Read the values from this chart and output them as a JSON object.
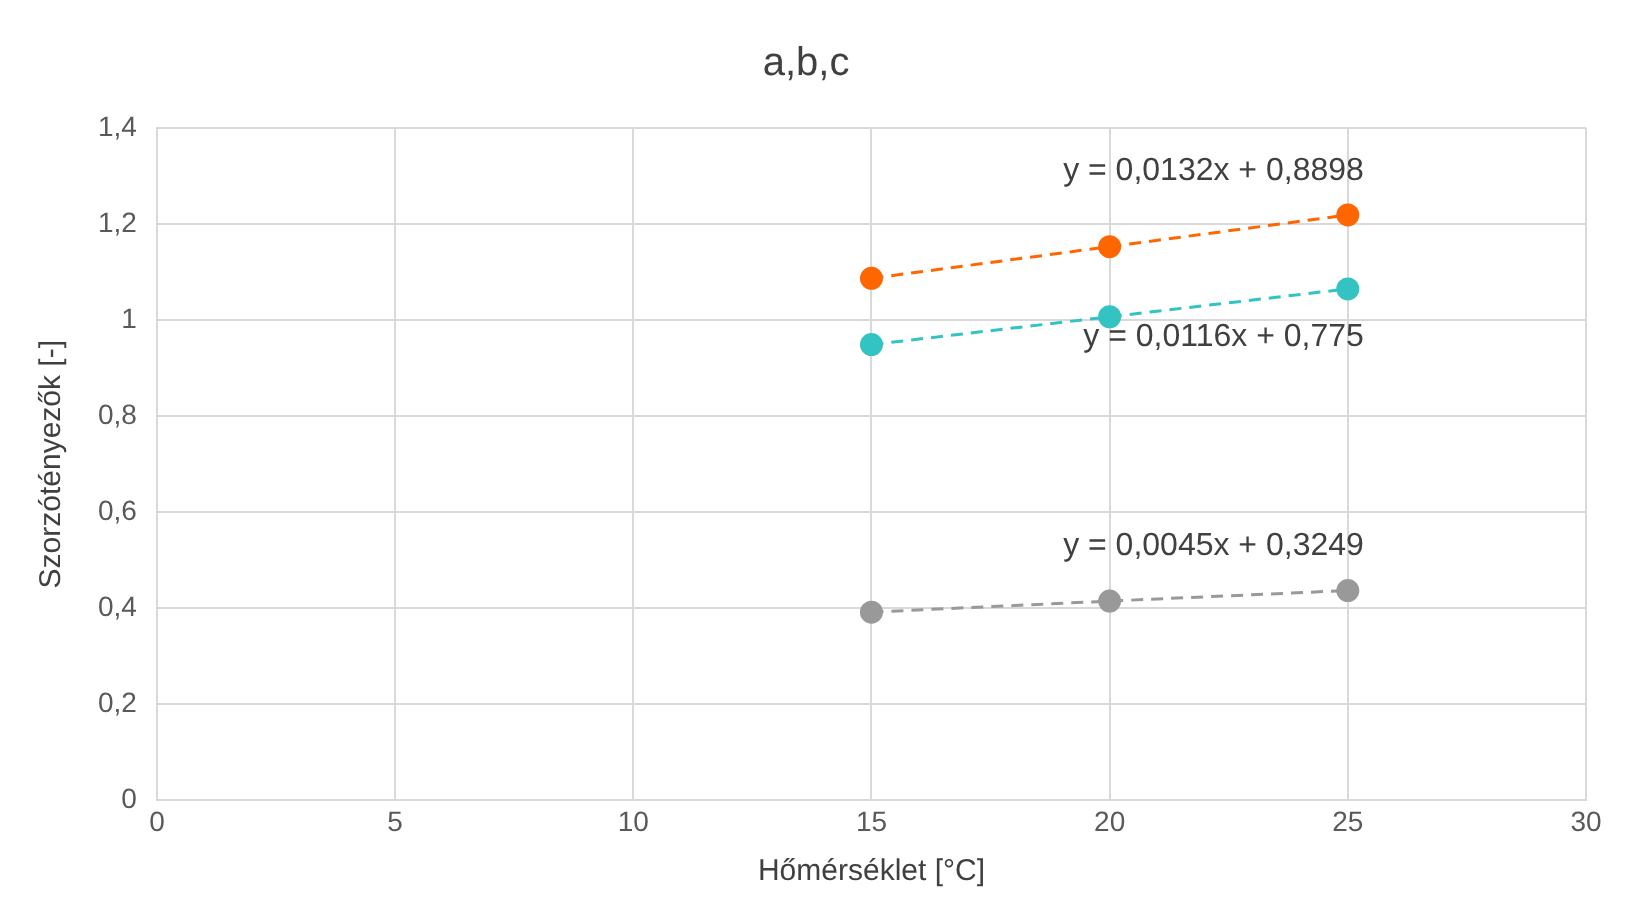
{
  "chart_data": {
    "type": "line",
    "title": "a,b,c",
    "xlabel": "Hőmérséklet [°C]",
    "ylabel": "Szorzótényezők [-]",
    "x": [
      15,
      20,
      25
    ],
    "series": [
      {
        "color": "#ff6600",
        "values": [
          1.087,
          1.153,
          1.219
        ]
      },
      {
        "color": "#33c3c3",
        "values": [
          0.949,
          1.007,
          1.065
        ]
      },
      {
        "color": "#999999",
        "values": [
          0.392,
          0.415,
          0.437
        ]
      }
    ],
    "marker": "circle",
    "line_style": "dashed",
    "grid": true,
    "legend": false,
    "xlim": [
      0,
      30
    ],
    "xticks": [
      0,
      5,
      10,
      15,
      20,
      25,
      30
    ],
    "ylim": [
      0,
      1.4
    ],
    "yticks": [
      0,
      {
        "value": 0.2,
        "label": "0,2"
      },
      {
        "value": 0.4,
        "label": "0,4"
      },
      {
        "value": 0.6,
        "label": "0,6"
      },
      {
        "value": 0.8,
        "label": "0,8"
      },
      1,
      {
        "value": 1.2,
        "label": "1,2"
      },
      {
        "value": 1.4,
        "label": "1,4"
      }
    ],
    "annotations": [
      "y = 0,0132x + 0,8898",
      "y = 0,0116x + 0,775",
      "y = 0,0045x + 0,3249"
    ]
  }
}
